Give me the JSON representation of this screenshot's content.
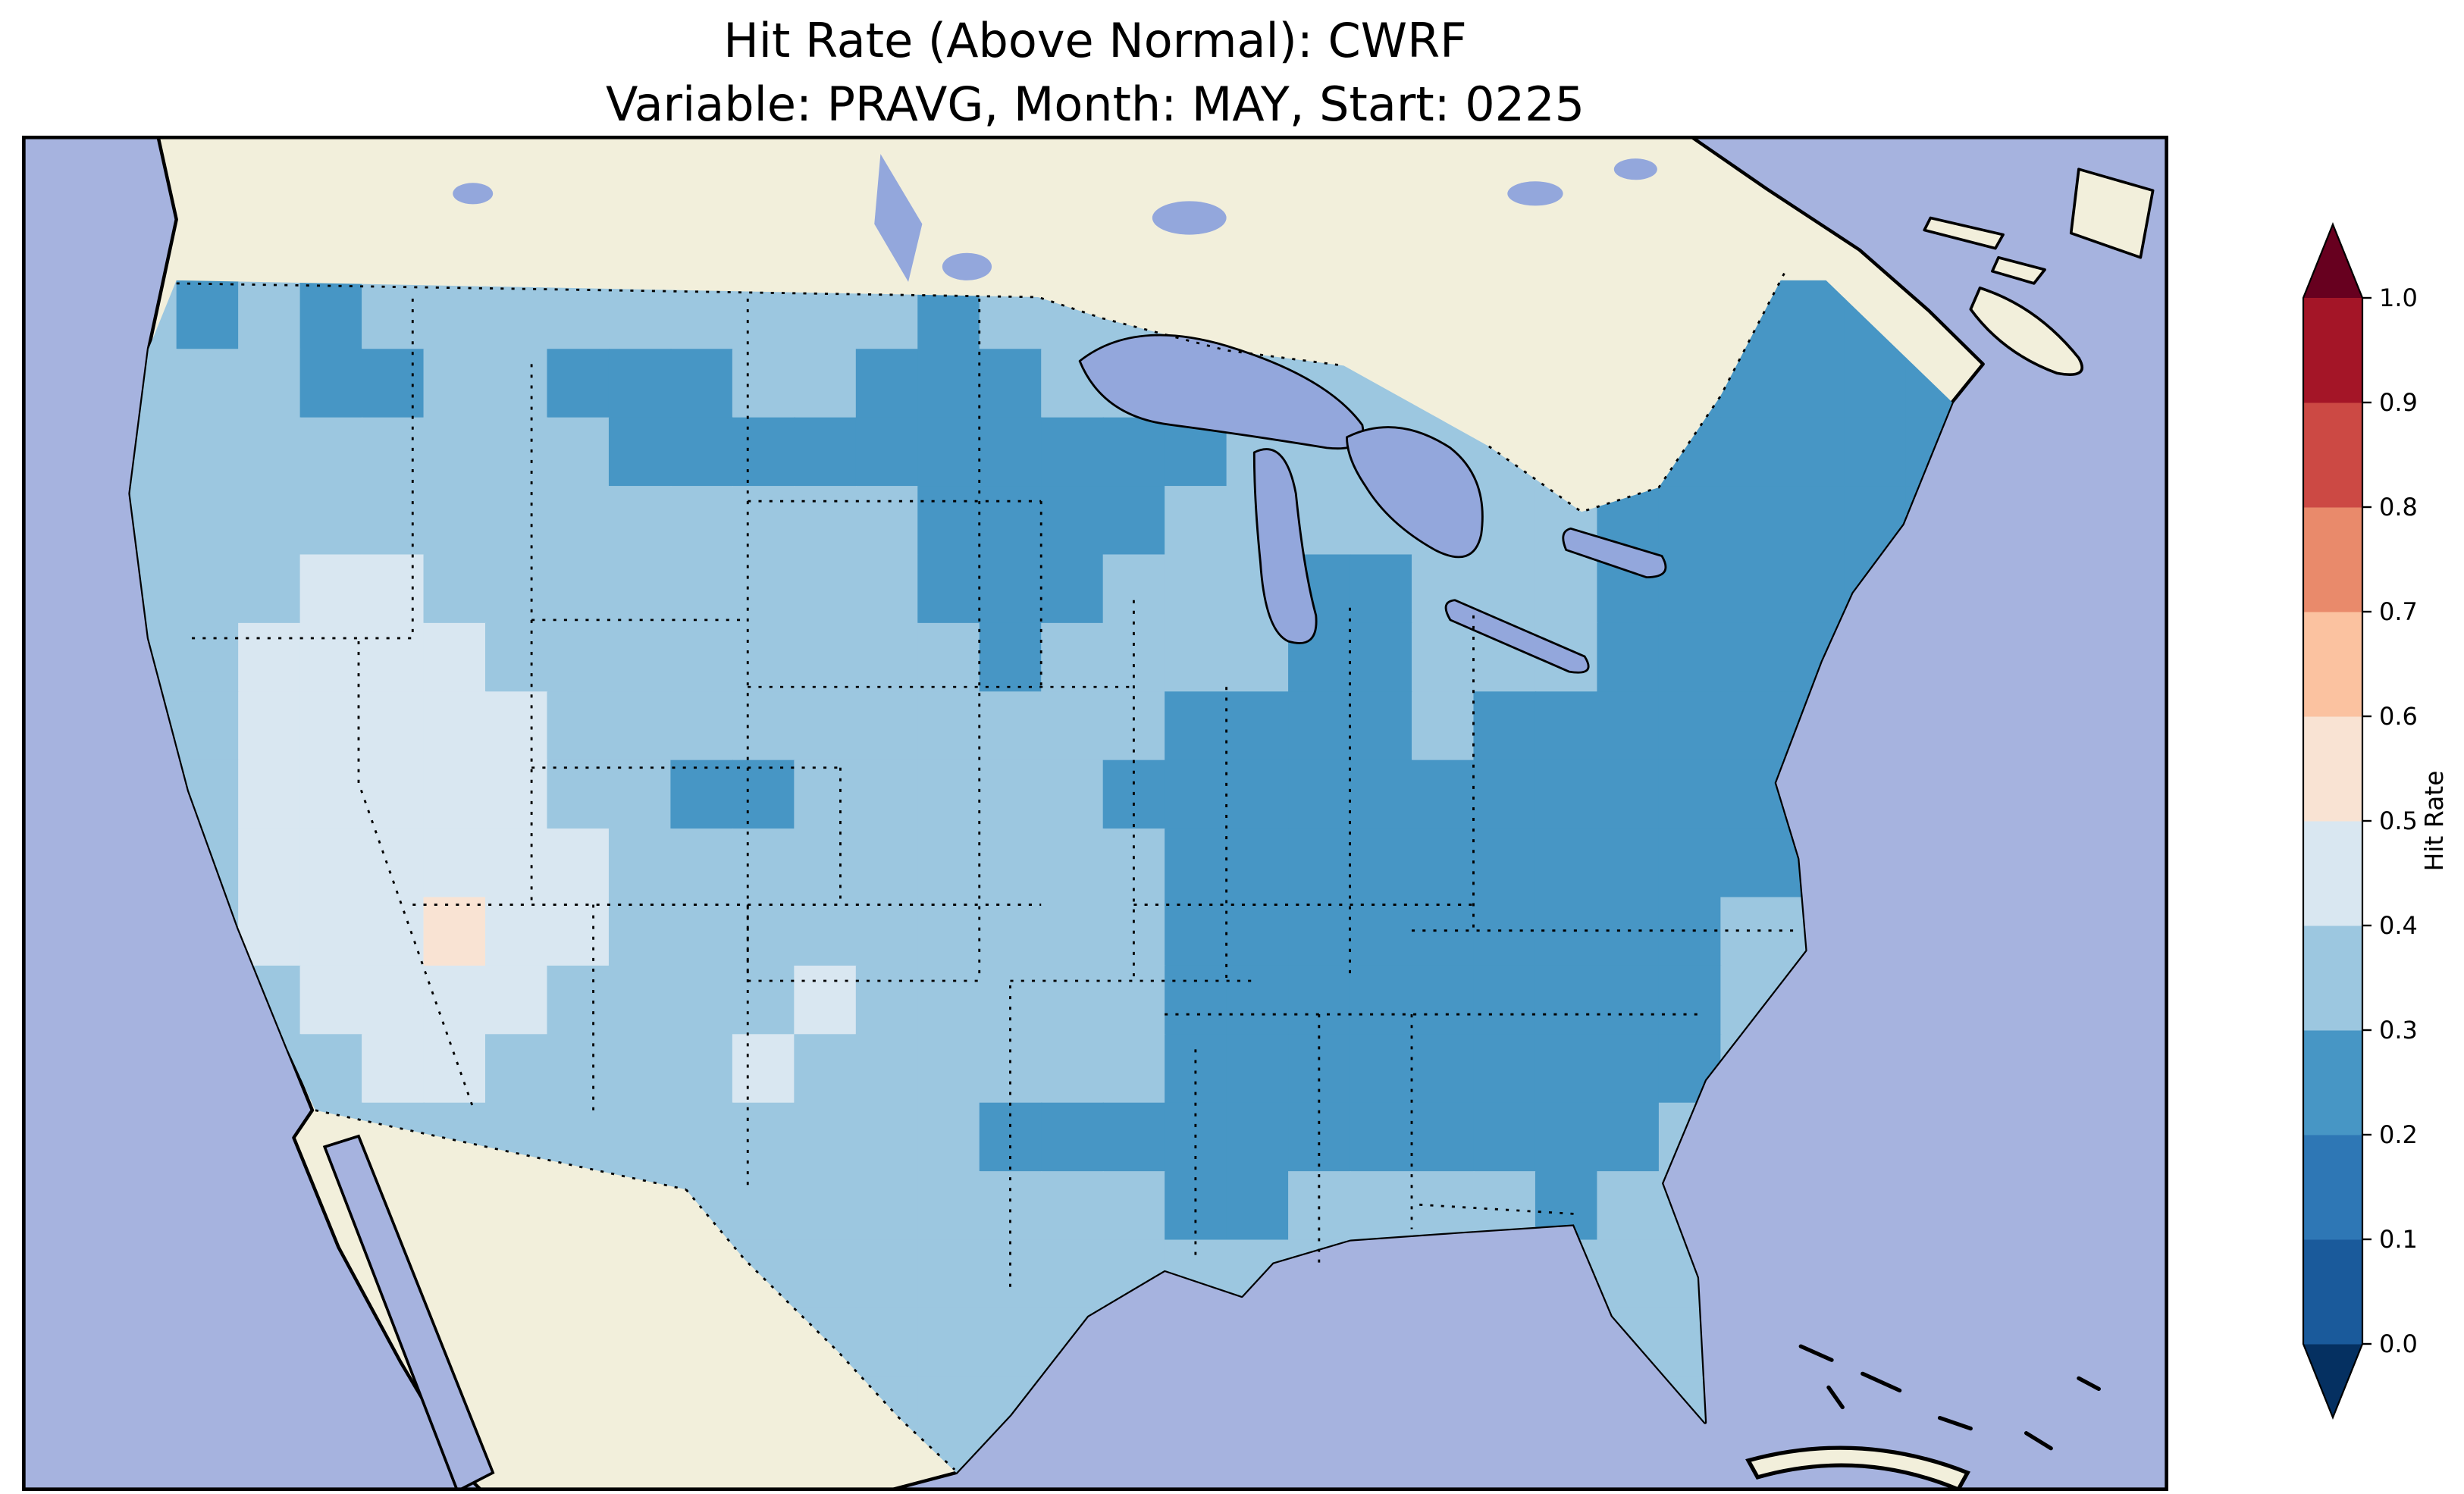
{
  "chart_data": {
    "type": "heatmap",
    "title": "Hit Rate (Above Normal): CWRF",
    "subtitle": "Variable: PRAVG, Month: MAY, Start: 0225",
    "region": "Contiguous United States with surrounding Canada, Mexico, Atlantic and Pacific",
    "legend_position": "right",
    "colorbar": {
      "label": "Hit Rate",
      "orientation": "vertical",
      "extend": "both",
      "tick_labels": [
        "0.0",
        "0.1",
        "0.2",
        "0.3",
        "0.4",
        "0.5",
        "0.6",
        "0.7",
        "0.8",
        "0.9",
        "1.0"
      ],
      "bin_edges": [
        0.0,
        0.1,
        0.2,
        0.3,
        0.4,
        0.5,
        0.6,
        0.7,
        0.8,
        0.9,
        1.0
      ],
      "bin_colors": [
        "#1a5a9b",
        "#2e77b5",
        "#4796c5",
        "#9cc7e0",
        "#d9e7f1",
        "#f9e3d3",
        "#fbc2a0",
        "#e98a6b",
        "#cc4944",
        "#a41527"
      ],
      "under_color": "#053061",
      "over_color": "#67001f"
    },
    "map_colors": {
      "ocean": "#a6b3df",
      "land": "#f2efdb",
      "lakes": "#93a7dc",
      "coastline": "#000000",
      "figure_background": "#ffffff"
    },
    "grid": {
      "description": "Coarse gridded hit-rate field over CONUS; each character is one cell, value_codes maps code to hit-rate bin midpoint; mostly 0.3-0.4 (light blue), 0.2-0.3 (medium blue) over Northeast/Southeast/Upper Midwest/N Plains, 0.4-0.5 (pale) over Southwest, isolated 0.5-0.6 (pale pink) cell in New Mexico area",
      "ncols": 30,
      "nrows": 18,
      "value_codes": {
        "2": 0.25,
        "3": 0.35,
        "4": 0.45,
        "6": 0.55
      },
      "rows": [
        "323233333333323333333333222222",
        "333223322233222333333333222222",
        "333333332222222222333333222222",
        "333333333333322223333333222222",
        "333443333333322233322333222222",
        "334444333333332333322333222222",
        "334444433333333332222322222222",
        "334444433223333322222222222222",
        "334444443333333332222222222233",
        "334446443333333332222222223333",
        "333444433334333332222222223333",
        "333344333343333332222222223333",
        "333333333333332222222222233333",
        "333333333333333332233332333333",
        "333333333333333333333333333333",
        "333333333333333333333333333333",
        "333333333333333333333333333333",
        "333333333333333333333333333333"
      ]
    }
  }
}
